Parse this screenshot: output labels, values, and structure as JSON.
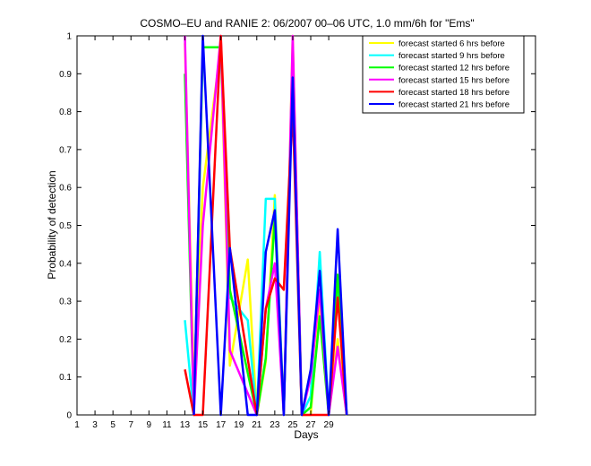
{
  "chart_data": {
    "type": "line",
    "title": "COSMO–EU and RANIE 2: 06/2007 00–06 UTC, 1.0 mm/6h for \"Ems\"",
    "xlabel": "Days",
    "ylabel": "Probability of detection",
    "xlim": [
      1,
      52
    ],
    "ylim": [
      0,
      1
    ],
    "xticks": [
      1,
      3,
      5,
      7,
      9,
      11,
      13,
      15,
      17,
      19,
      21,
      23,
      25,
      27,
      29
    ],
    "yticks": [
      0,
      0.1,
      0.2,
      0.3,
      0.4,
      0.5,
      0.6,
      0.7,
      0.8,
      0.9,
      1
    ],
    "grid": false,
    "legend_position": "top-right",
    "series": [
      {
        "name": "forecast started 6 hrs before",
        "color": "#ffff00",
        "points": [
          [
            13,
            0.98
          ],
          [
            14,
            0.08
          ],
          [
            15,
            0.6
          ],
          [
            17,
            0.97
          ],
          [
            18,
            0.13
          ],
          [
            20,
            0.41
          ],
          [
            21,
            0.0
          ],
          [
            22,
            0.14
          ],
          [
            23,
            0.58
          ],
          [
            24,
            0.0
          ],
          [
            25,
            1.0
          ],
          [
            26,
            0.0
          ],
          [
            27,
            0.0
          ],
          [
            28,
            0.29
          ],
          [
            29,
            0.0
          ],
          [
            30,
            0.2
          ],
          [
            31,
            0.0
          ]
        ]
      },
      {
        "name": "forecast started 9 hrs before",
        "color": "#00ffff",
        "points": [
          [
            13,
            0.25
          ],
          [
            14,
            0.0
          ],
          [
            15,
            0.97
          ],
          [
            17,
            0.97
          ],
          [
            18,
            0.31
          ],
          [
            20,
            0.25
          ],
          [
            21,
            0.0
          ],
          [
            22,
            0.57
          ],
          [
            23,
            0.57
          ],
          [
            24,
            0.0
          ],
          [
            25,
            0.97
          ],
          [
            26,
            0.0
          ],
          [
            27,
            0.05
          ],
          [
            28,
            0.43
          ],
          [
            29,
            0.0
          ],
          [
            30,
            0.35
          ],
          [
            31,
            0.0
          ]
        ]
      },
      {
        "name": "forecast started 12 hrs before",
        "color": "#00ff00",
        "points": [
          [
            13,
            0.9
          ],
          [
            14,
            0.0
          ],
          [
            15,
            0.97
          ],
          [
            17,
            0.97
          ],
          [
            18,
            0.33
          ],
          [
            21,
            0.0
          ],
          [
            22,
            0.15
          ],
          [
            23,
            0.52
          ],
          [
            24,
            0.0
          ],
          [
            25,
            0.97
          ],
          [
            26,
            0.0
          ],
          [
            27,
            0.02
          ],
          [
            28,
            0.26
          ],
          [
            29,
            0.0
          ],
          [
            30,
            0.37
          ],
          [
            31,
            0.0
          ]
        ]
      },
      {
        "name": "forecast started 15 hrs before",
        "color": "#ff00ff",
        "points": [
          [
            13,
            1.0
          ],
          [
            14,
            0.0
          ],
          [
            15,
            0.5
          ],
          [
            17,
            1.0
          ],
          [
            18,
            0.17
          ],
          [
            21,
            0.0
          ],
          [
            22,
            0.28
          ],
          [
            23,
            0.4
          ],
          [
            24,
            0.0
          ],
          [
            25,
            1.0
          ],
          [
            26,
            0.0
          ],
          [
            27,
            0.1
          ],
          [
            28,
            0.33
          ],
          [
            29,
            0.0
          ],
          [
            30,
            0.18
          ],
          [
            31,
            0.0
          ]
        ]
      },
      {
        "name": "forecast started 18 hrs before",
        "color": "#ff0000",
        "points": [
          [
            13,
            0.12
          ],
          [
            14,
            0.0
          ],
          [
            15,
            0.0
          ],
          [
            17,
            1.0
          ],
          [
            18,
            0.44
          ],
          [
            21,
            0.0
          ],
          [
            22,
            0.28
          ],
          [
            23,
            0.36
          ],
          [
            24,
            0.33
          ],
          [
            25,
            0.81
          ],
          [
            26,
            0.0
          ],
          [
            27,
            0.0
          ],
          [
            28,
            0.0
          ],
          [
            29,
            0.0
          ],
          [
            30,
            0.31
          ],
          [
            31,
            0.0
          ]
        ]
      },
      {
        "name": "forecast started 21 hrs before",
        "color": "#0000ff",
        "points": [
          [
            14,
            0.0
          ],
          [
            15,
            1.0
          ],
          [
            17,
            0.0
          ],
          [
            18,
            0.44
          ],
          [
            20,
            0.0
          ],
          [
            21,
            0.0
          ],
          [
            22,
            0.43
          ],
          [
            23,
            0.54
          ],
          [
            24,
            0.0
          ],
          [
            25,
            0.89
          ],
          [
            26,
            0.0
          ],
          [
            27,
            0.12
          ],
          [
            28,
            0.38
          ],
          [
            29,
            0.0
          ],
          [
            30,
            0.49
          ],
          [
            31,
            0.0
          ]
        ]
      }
    ]
  }
}
